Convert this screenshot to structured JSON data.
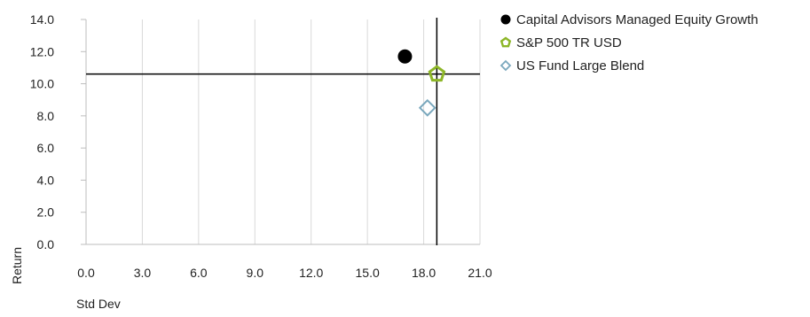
{
  "chart_data": {
    "type": "scatter",
    "xlabel": "Std Dev",
    "ylabel": "Return",
    "xlim": [
      0,
      21
    ],
    "ylim": [
      0,
      14
    ],
    "x_ticks": [
      "0.0",
      "3.0",
      "6.0",
      "9.0",
      "12.0",
      "15.0",
      "18.0",
      "21.0"
    ],
    "y_ticks": [
      "0.0",
      "2.0",
      "4.0",
      "6.0",
      "8.0",
      "10.0",
      "12.0",
      "14.0"
    ],
    "grid": "vertical",
    "legend_position": "right",
    "reference_lines": {
      "x": 18.7,
      "y": 10.6
    },
    "series": [
      {
        "name": "Capital Advisors Managed Equity Growth",
        "marker": "filled-circle",
        "color": "#000000",
        "x": 17.0,
        "y": 11.7
      },
      {
        "name": "S&P 500 TR USD",
        "marker": "pentagon",
        "color": "#8db628",
        "x": 18.7,
        "y": 10.6
      },
      {
        "name": "US Fund Large Blend",
        "marker": "diamond",
        "color": "#7aa8bd",
        "x": 18.2,
        "y": 8.5
      }
    ]
  }
}
